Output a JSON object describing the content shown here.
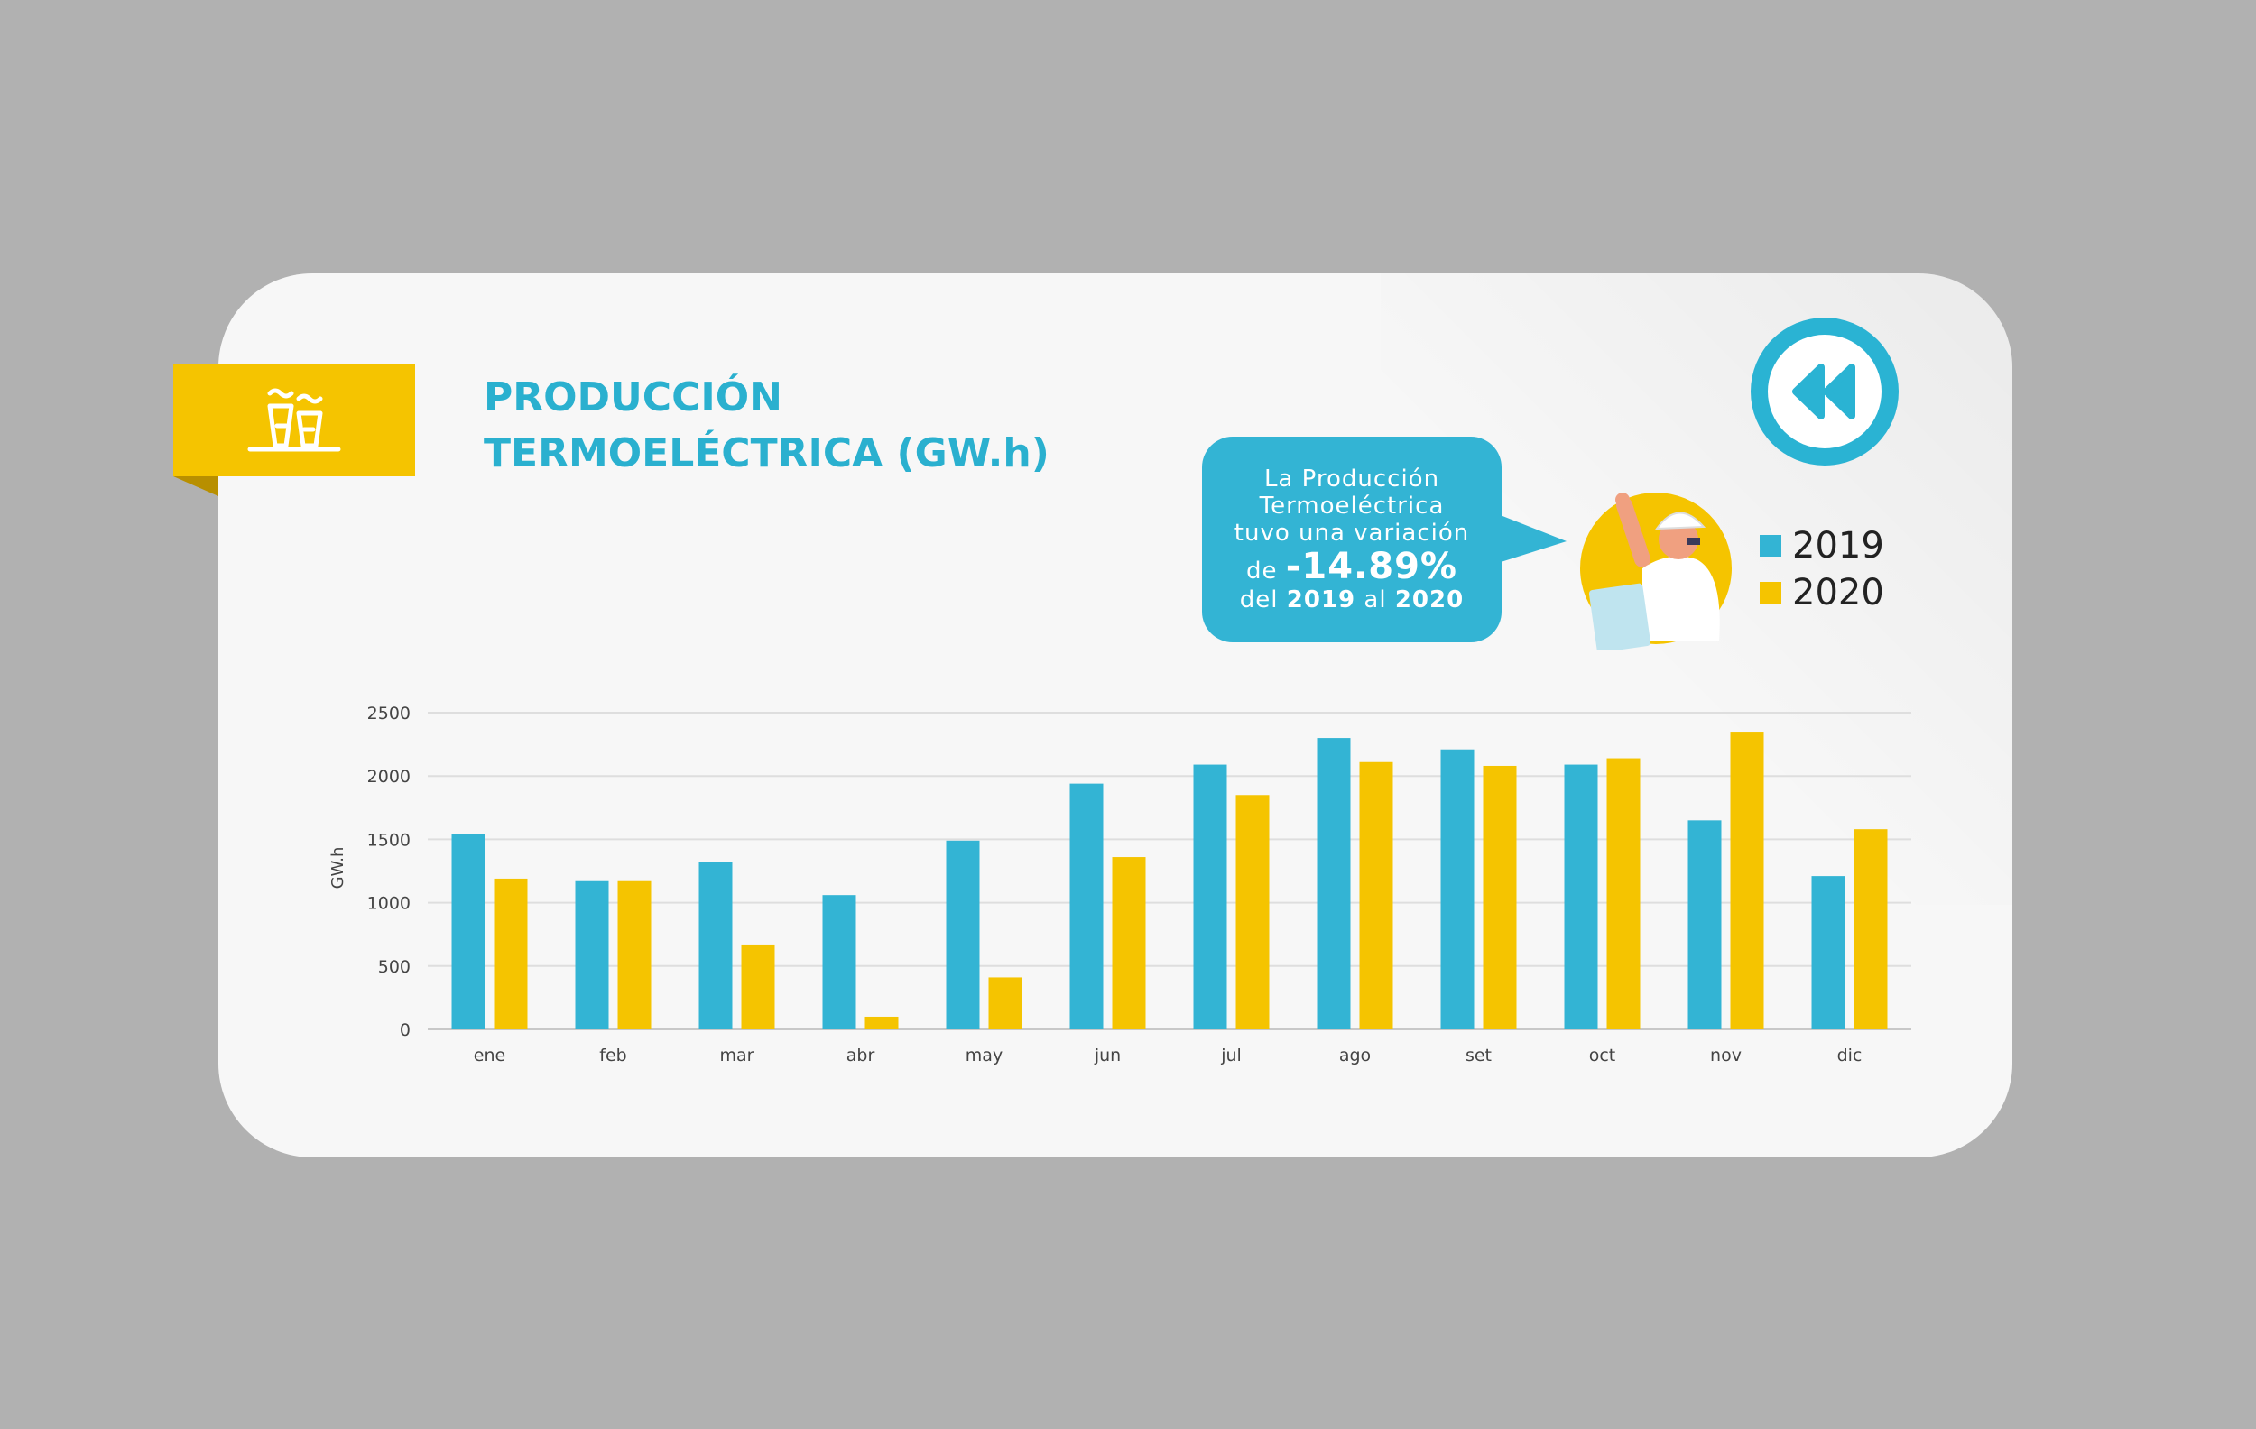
{
  "header": {
    "title_line1": "PRODUCCIÓN",
    "title_line2": "TERMOELÉCTRICA (GW.h)",
    "icon": "thermal-plant-icon"
  },
  "nav": {
    "back_icon": "rewind-icon"
  },
  "callout": {
    "line1": "La Producción",
    "line2": "Termoeléctrica",
    "line3": "tuvo una variación",
    "line4_prefix": "de",
    "variation": "-14.89%",
    "line5_del": "del",
    "year_from": "2019",
    "line5_al": "al",
    "year_to": "2020"
  },
  "colors": {
    "series_2019": "#33b4d4",
    "series_2020": "#f5c400",
    "accent": "#2ab0cf"
  },
  "chart_data": {
    "type": "bar",
    "title": "PRODUCCIÓN TERMOELÉCTRICA (GW.h)",
    "xlabel": "",
    "ylabel": "GW.h",
    "ylim": [
      0,
      2500
    ],
    "yticks": [
      0,
      500,
      1000,
      1500,
      2000,
      2500
    ],
    "grid": true,
    "legend_position": "top-right",
    "categories": [
      "ene",
      "feb",
      "mar",
      "abr",
      "may",
      "jun",
      "jul",
      "ago",
      "set",
      "oct",
      "nov",
      "dic"
    ],
    "series": [
      {
        "name": "2019",
        "color": "#33b4d4",
        "values": [
          1540,
          1170,
          1320,
          1060,
          1490,
          1940,
          2090,
          2300,
          2210,
          2090,
          1650,
          1210
        ]
      },
      {
        "name": "2020",
        "color": "#f5c400",
        "values": [
          1190,
          1170,
          670,
          100,
          410,
          1360,
          1850,
          2110,
          2080,
          2140,
          2350,
          1580
        ]
      }
    ]
  }
}
